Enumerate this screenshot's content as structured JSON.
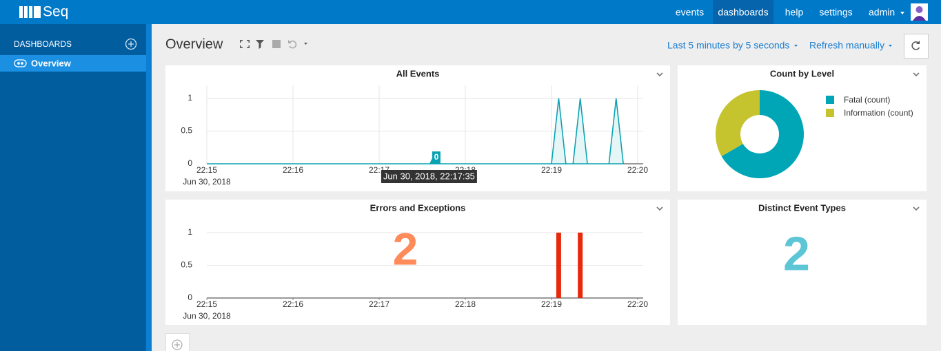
{
  "nav": {
    "brand": "Seq",
    "items": [
      "events",
      "dashboards",
      "help",
      "settings"
    ],
    "active": 1,
    "user": "admin"
  },
  "sidebar": {
    "heading": "DASHBOARDS",
    "items": [
      "Overview"
    ]
  },
  "toolbar": {
    "title": "Overview",
    "time_range": "Last 5 minutes by 5 seconds",
    "refresh": "Refresh manually"
  },
  "panels": [
    {
      "title": "All Events",
      "chart_data": {
        "type": "area",
        "x": [
          "22:15:00",
          "22:19:00",
          "22:19:05",
          "22:19:10",
          "22:19:15",
          "22:19:20",
          "22:19:25",
          "22:19:40",
          "22:19:45",
          "22:19:50"
        ],
        "series": [
          {
            "color": "#0aa3b3",
            "values": [
              0,
              0,
              1,
              0,
              0,
              1,
              0,
              0,
              1,
              0
            ]
          }
        ],
        "xlim": [
          "22:15",
          "22:20"
        ],
        "xticks": [
          "22:15",
          "22:16",
          "22:17",
          "22:18",
          "22:19",
          "22:20"
        ],
        "x_sublabel": "Jun 30, 2018",
        "ylim": [
          0,
          1.2
        ],
        "yticks": [
          0,
          0.5,
          1
        ],
        "grid": true,
        "xgrid": true,
        "tooltip": {
          "x": "22:17:35",
          "value": 0,
          "label": "Jun 30, 2018, 22:17:35"
        }
      }
    },
    {
      "title": "Count by Level",
      "chart_data": {
        "type": "donut",
        "categories": [
          "Fatal (count)",
          "Information (count)"
        ],
        "values": [
          2,
          1
        ],
        "colors": [
          "#00a6b6",
          "#c6c42e"
        ]
      }
    },
    {
      "title": "Errors and Exceptions",
      "chart_data": {
        "type": "bar",
        "x": [
          "22:19:05",
          "22:19:20"
        ],
        "series": [
          {
            "color": "#e8290b",
            "values": [
              1,
              1
            ]
          }
        ],
        "xlim": [
          "22:15",
          "22:20"
        ],
        "xticks": [
          "22:15",
          "22:16",
          "22:17",
          "22:18",
          "22:19",
          "22:20"
        ],
        "x_sublabel": "Jun 30, 2018",
        "ylim": [
          0,
          1.2
        ],
        "yticks": [
          0,
          0.5,
          1
        ],
        "grid": true,
        "xgrid": false,
        "total": 2,
        "total_color": "#ff8a5a"
      }
    },
    {
      "title": "Distinct Event Types",
      "chart_data": {
        "type": "number",
        "value": 2,
        "color": "#5cc6d6"
      }
    }
  ]
}
